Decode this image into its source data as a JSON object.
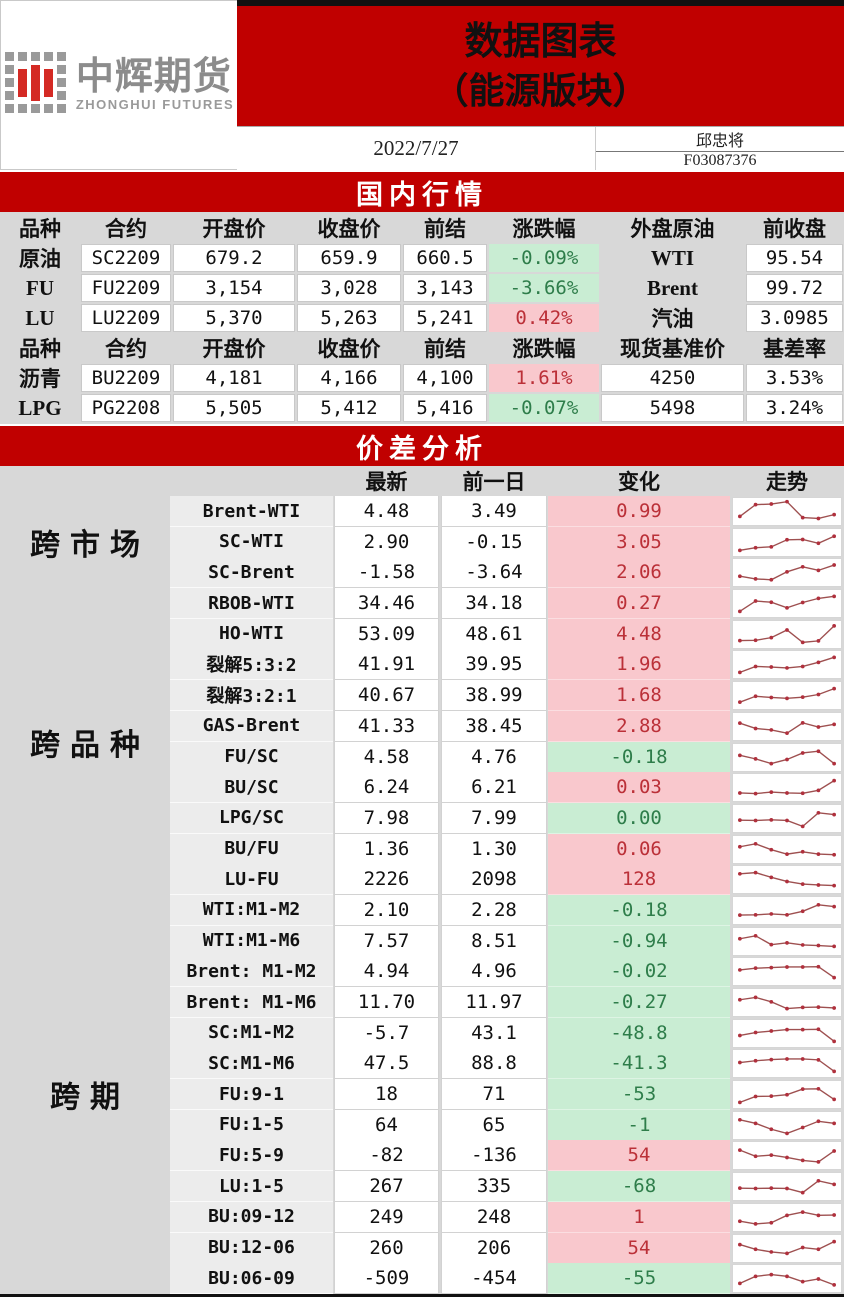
{
  "header": {
    "company_cn": "中辉期货",
    "company_en": "ZHONGHUI FUTURES",
    "title_line1": "数据图表",
    "title_line2": "（能源版块）",
    "date": "2022/7/27",
    "analyst": "邱忠将",
    "analyst_id": "F03087376"
  },
  "colors": {
    "banner_red": "#c00000",
    "up_bg": "#f9c8cd",
    "up_text": "#bb3038",
    "down_bg": "#c9edd3",
    "down_text": "#2e7d4a",
    "spark_line": "#9e5050",
    "spark_marker": "#b0303d"
  },
  "domestic": {
    "section_title": "国内行情",
    "blocks": [
      {
        "headers": [
          "品种",
          "合约",
          "开盘价",
          "收盘价",
          "前结",
          "涨跌幅",
          "外盘原油",
          "前收盘"
        ],
        "ref_is_cell": false,
        "rows": [
          {
            "variety": "原油",
            "contract": "SC2209",
            "open": "679.2",
            "close": "659.9",
            "prev": "660.5",
            "change": "-0.09%",
            "dir": "down",
            "ref_label": "WTI",
            "ref_value": "95.54"
          },
          {
            "variety": "FU",
            "contract": "FU2209",
            "open": "3,154",
            "close": "3,028",
            "prev": "3,143",
            "change": "-3.66%",
            "dir": "down",
            "ref_label": "Brent",
            "ref_value": "99.72"
          },
          {
            "variety": "LU",
            "contract": "LU2209",
            "open": "5,370",
            "close": "5,263",
            "prev": "5,241",
            "change": "0.42%",
            "dir": "up",
            "ref_label": "汽油",
            "ref_value": "3.0985"
          }
        ]
      },
      {
        "headers": [
          "品种",
          "合约",
          "开盘价",
          "收盘价",
          "前结",
          "涨跌幅",
          "现货基准价",
          "基差率"
        ],
        "ref_is_cell": true,
        "rows": [
          {
            "variety": "沥青",
            "contract": "BU2209",
            "open": "4,181",
            "close": "4,166",
            "prev": "4,100",
            "change": "1.61%",
            "dir": "up",
            "ref_label": "4250",
            "ref_value": "3.53%"
          },
          {
            "variety": "LPG",
            "contract": "PG2208",
            "open": "5,505",
            "close": "5,412",
            "prev": "5,416",
            "change": "-0.07%",
            "dir": "down",
            "ref_label": "5498",
            "ref_value": "3.24%"
          }
        ]
      }
    ]
  },
  "spread": {
    "section_title": "价差分析",
    "columns": {
      "latest": "最新",
      "prev": "前一日",
      "change": "变化",
      "trend": "走势"
    },
    "groups": [
      {
        "label": "跨市场",
        "rows": [
          {
            "label": "Brent-WTI",
            "latest": "4.48",
            "prev": "3.49",
            "change": "0.99",
            "dir": "up",
            "spark": [
              2,
              6,
              6.2,
              7,
              1.6,
              1.3,
              2.6
            ]
          },
          {
            "label": "SC-WTI",
            "latest": "2.90",
            "prev": "-0.15",
            "change": "3.05",
            "dir": "up",
            "spark": [
              1,
              1.9,
              2.2,
              4.6,
              4.7,
              3.4,
              5.8
            ]
          },
          {
            "label": "SC-Brent",
            "latest": "-1.58",
            "prev": "-3.64",
            "change": "2.06",
            "dir": "up",
            "spark": [
              2.4,
              1.5,
              1.2,
              3.9,
              5.6,
              4.4,
              6.2
            ]
          }
        ]
      },
      {
        "label": "跨品种",
        "rows": [
          {
            "label": "RBOB-WTI",
            "latest": "34.46",
            "prev": "34.18",
            "change": "0.27",
            "dir": "up",
            "spark": [
              1,
              4.5,
              4.1,
              2.2,
              4,
              5.4,
              6.1
            ]
          },
          {
            "label": "HO-WTI",
            "latest": "53.09",
            "prev": "48.61",
            "change": "4.48",
            "dir": "up",
            "spark": [
              1.6,
              1.7,
              2.6,
              5.2,
              1,
              1.5,
              6.6
            ]
          },
          {
            "label": "裂解5:3:2",
            "latest": "41.91",
            "prev": "39.95",
            "change": "1.96",
            "dir": "up",
            "spark": [
              1,
              3,
              2.8,
              2.5,
              3,
              4.4,
              6.1
            ]
          },
          {
            "label": "裂解3:2:1",
            "latest": "40.67",
            "prev": "38.99",
            "change": "1.68",
            "dir": "up",
            "spark": [
              1.4,
              3.4,
              3,
              2.7,
              3.1,
              4,
              6
            ]
          },
          {
            "label": "GAS-Brent",
            "latest": "41.33",
            "prev": "38.45",
            "change": "2.88",
            "dir": "up",
            "spark": [
              4.8,
              3,
              2.5,
              1.4,
              4.9,
              3.5,
              4.4
            ]
          },
          {
            "label": "FU/SC",
            "latest": "4.58",
            "prev": "4.76",
            "change": "-0.18",
            "dir": "down",
            "spark": [
              4.4,
              3.2,
              1.6,
              3,
              5.2,
              5.8,
              1.6
            ]
          },
          {
            "label": "BU/SC",
            "latest": "6.24",
            "prev": "6.21",
            "change": "0.03",
            "dir": "up",
            "spark": [
              1.8,
              1.6,
              2.1,
              1.8,
              1.7,
              2.7,
              6
            ]
          },
          {
            "label": "LPG/SC",
            "latest": "7.98",
            "prev": "7.99",
            "change": "0.00",
            "dir": "down",
            "spark": [
              3.1,
              3,
              3.2,
              3,
              1,
              5.6,
              5
            ]
          },
          {
            "label": "BU/FU",
            "latest": "1.36",
            "prev": "1.30",
            "change": "0.06",
            "dir": "up",
            "spark": [
              4.6,
              5.6,
              3.6,
              2.1,
              2.9,
              2.1,
              1.9
            ]
          },
          {
            "label": "LU-FU",
            "latest": "2226",
            "prev": "2098",
            "change": "128",
            "dir": "up",
            "spark": [
              5.6,
              6,
              4.4,
              3,
              2.1,
              1.8,
              1.6
            ]
          }
        ]
      },
      {
        "label": "跨期",
        "rows": [
          {
            "label": "WTI:M1-M2",
            "latest": "2.10",
            "prev": "2.28",
            "change": "-0.18",
            "dir": "down",
            "spark": [
              2.1,
              2.2,
              2.5,
              2.2,
              3.4,
              5.6,
              5
            ]
          },
          {
            "label": "WTI:M1-M6",
            "latest": "7.57",
            "prev": "8.51",
            "change": "-0.94",
            "dir": "down",
            "spark": [
              4.6,
              5.6,
              2.6,
              3.2,
              2.5,
              2.3,
              2
            ]
          },
          {
            "label": "Brent: M1-M2",
            "latest": "4.94",
            "prev": "4.96",
            "change": "-0.02",
            "dir": "down",
            "spark": [
              4.2,
              4.8,
              5,
              5.2,
              5.2,
              5.3,
              1.6
            ]
          },
          {
            "label": "Brent: M1-M6",
            "latest": "11.70",
            "prev": "11.97",
            "change": "-0.27",
            "dir": "down",
            "spark": [
              4.6,
              5.4,
              3.9,
              1.6,
              2,
              2.1,
              1.8
            ]
          },
          {
            "label": "SC:M1-M2",
            "latest": "-5.7",
            "prev": "43.1",
            "change": "-48.8",
            "dir": "down",
            "spark": [
              3,
              4,
              4.5,
              5,
              5,
              5.1,
              1
            ]
          },
          {
            "label": "SC:M1-M6",
            "latest": "47.5",
            "prev": "88.8",
            "change": "-41.3",
            "dir": "down",
            "spark": [
              4,
              4.6,
              5,
              5.2,
              5.2,
              4.9,
              1
            ]
          },
          {
            "label": "FU:9-1",
            "latest": "18",
            "prev": "71",
            "change": "-53",
            "dir": "down",
            "spark": [
              1,
              3,
              3.1,
              3.6,
              5.5,
              5.6,
              2
            ]
          },
          {
            "label": "FU:1-5",
            "latest": "64",
            "prev": "65",
            "change": "-1",
            "dir": "down",
            "spark": [
              5.6,
              4.4,
              2.4,
              1,
              3,
              5.1,
              4.4
            ]
          },
          {
            "label": "FU:5-9",
            "latest": "-82",
            "prev": "-136",
            "change": "54",
            "dir": "up",
            "spark": [
              5.5,
              3.4,
              3.8,
              3,
              2,
              1.5,
              5.2
            ]
          },
          {
            "label": "LU:1-5",
            "latest": "267",
            "prev": "335",
            "change": "-68",
            "dir": "down",
            "spark": [
              3.1,
              3,
              3.1,
              3,
              1.6,
              5.6,
              4.4
            ]
          },
          {
            "label": "BU:09-12",
            "latest": "249",
            "prev": "248",
            "change": "1",
            "dir": "up",
            "spark": [
              2.4,
              1.5,
              1.9,
              4.4,
              5.5,
              4.4,
              4.5
            ]
          },
          {
            "label": "BU:12-06",
            "latest": "260",
            "prev": "206",
            "change": "54",
            "dir": "up",
            "spark": [
              5,
              3.4,
              2.5,
              2,
              4,
              3.4,
              6
            ]
          },
          {
            "label": "BU:06-09",
            "latest": "-509",
            "prev": "-454",
            "change": "-55",
            "dir": "down",
            "spark": [
              2,
              4.4,
              5,
              4.4,
              2.6,
              3.5,
              1.5
            ]
          }
        ]
      }
    ]
  }
}
